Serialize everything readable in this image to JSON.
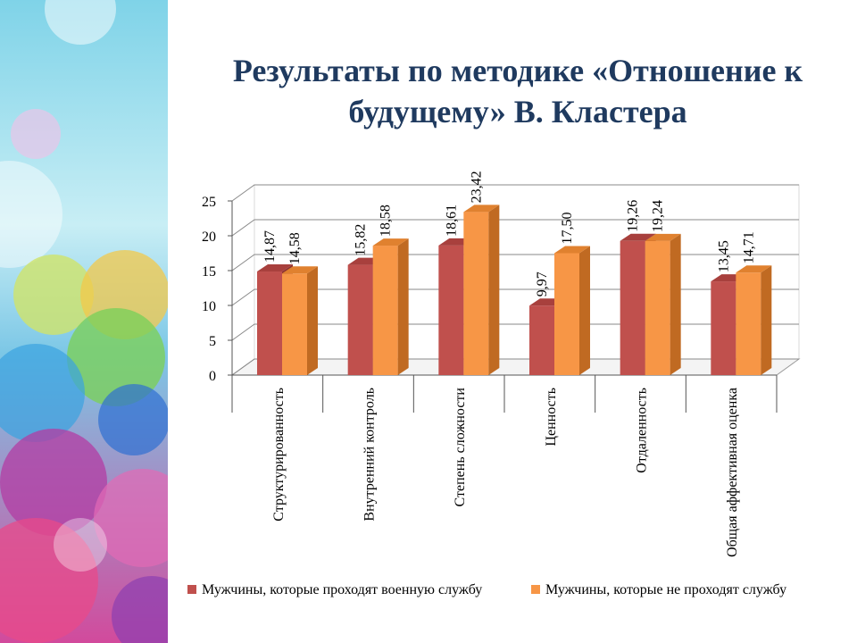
{
  "slide": {
    "title_line1": "Результаты по методике «Отношение к",
    "title_line2": "будущему» В. Кластера"
  },
  "colors": {
    "series1_front": "#c0504d",
    "series1_side": "#8e3431",
    "series1_top": "#a8403d",
    "series2_front": "#f79646",
    "series2_side": "#c06a22",
    "series2_top": "#e0812f",
    "title": "#1f3a5f"
  },
  "chart_data": {
    "type": "bar",
    "categories": [
      "Структурированность",
      "Внутренний контроль",
      "Степень сложности",
      "Ценность",
      "Отдаленность",
      "Общая аффективная оценка"
    ],
    "series": [
      {
        "name": "Мужчины, которые проходят военную службу",
        "values": [
          14.87,
          15.82,
          18.61,
          9.97,
          19.26,
          13.45
        ],
        "labels": [
          "14,87",
          "15,82",
          "18,61",
          "9,97",
          "19,26",
          "13,45"
        ]
      },
      {
        "name": "Мужчины, которые не проходят службу",
        "values": [
          14.58,
          18.58,
          23.42,
          17.5,
          19.24,
          14.71
        ],
        "labels": [
          "14,58",
          "18,58",
          "23,42",
          "17,50",
          "19,24",
          "14,71"
        ]
      }
    ],
    "y_ticks": [
      "0",
      "5",
      "10",
      "15",
      "20",
      "25"
    ],
    "ylim": [
      0,
      25
    ],
    "grid": true,
    "legend_position": "bottom",
    "style": "3d-clustered"
  }
}
